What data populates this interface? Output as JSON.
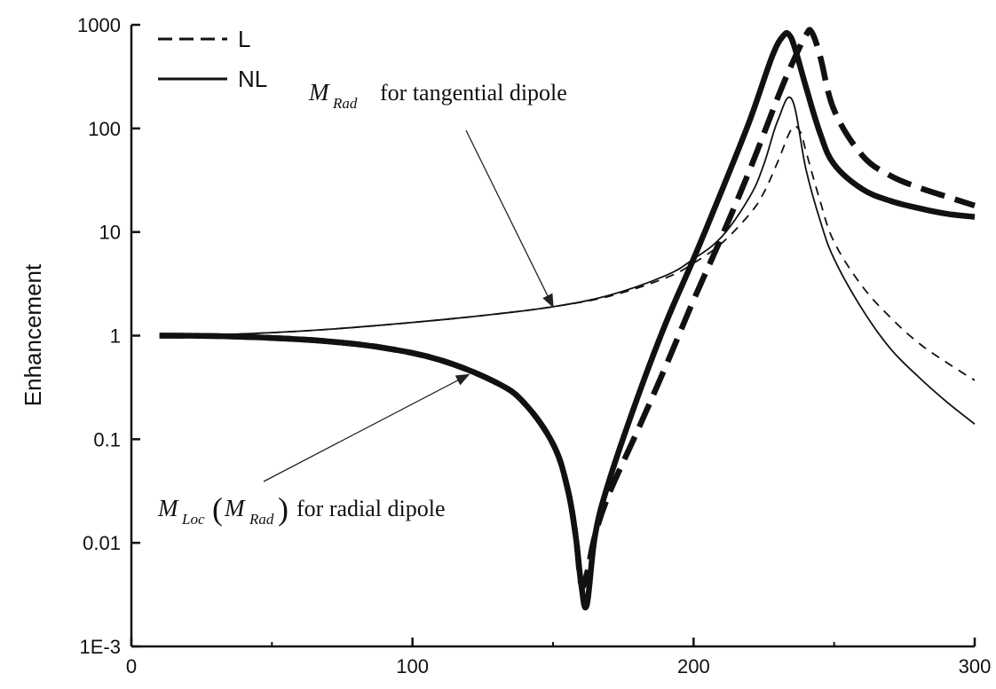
{
  "chart_data": {
    "type": "line",
    "title": "",
    "xlabel": "",
    "ylabel": "Enhancement",
    "xlim": [
      0,
      300
    ],
    "ylim": [
      0.001,
      1000
    ],
    "yscale": "log",
    "grid": false,
    "legend_position": "top-left",
    "x_ticks": [
      {
        "value": 0,
        "label": "0"
      },
      {
        "value": 100,
        "label": "100"
      },
      {
        "value": 200,
        "label": "200"
      },
      {
        "value": 300,
        "label": "300"
      }
    ],
    "y_ticks": [
      {
        "value": 0.001,
        "label": "1E-3"
      },
      {
        "value": 0.01,
        "label": "0.01"
      },
      {
        "value": 0.1,
        "label": "0.1"
      },
      {
        "value": 1,
        "label": "1"
      },
      {
        "value": 10,
        "label": "10"
      },
      {
        "value": 100,
        "label": "100"
      },
      {
        "value": 1000,
        "label": "1000"
      }
    ],
    "legend": [
      {
        "label": "L",
        "style": "dashed"
      },
      {
        "label": "NL",
        "style": "solid"
      }
    ],
    "annotations": [
      {
        "id": "tangential",
        "symbol": "M",
        "subscript": "Rad",
        "text": "for tangential dipole",
        "points_to": {
          "x": 150,
          "y": 1.9
        }
      },
      {
        "id": "radial",
        "symbol": "M",
        "subscript": "Loc",
        "paren_symbol": "M",
        "paren_subscript": "Rad",
        "text": "for radial dipole",
        "points_to": {
          "x": 120,
          "y": 0.42
        }
      }
    ],
    "series": [
      {
        "group": "tangential",
        "model": "L",
        "style": "dashed",
        "weight": "thin",
        "x": [
          10,
          30,
          50,
          70,
          90,
          110,
          130,
          150,
          170,
          190,
          200,
          210,
          220,
          225,
          230,
          235,
          238,
          240,
          245,
          250,
          260,
          270,
          280,
          290,
          300
        ],
        "y": [
          1,
          1.02,
          1.07,
          1.15,
          1.27,
          1.42,
          1.62,
          1.9,
          2.4,
          3.6,
          5,
          7.8,
          15,
          24,
          48,
          100,
          92,
          60,
          20,
          8,
          3.0,
          1.5,
          0.85,
          0.55,
          0.37
        ]
      },
      {
        "group": "tangential",
        "model": "NL",
        "style": "solid",
        "weight": "thin",
        "x": [
          10,
          30,
          50,
          70,
          90,
          110,
          130,
          150,
          170,
          190,
          200,
          210,
          220,
          225,
          230,
          235,
          240,
          245,
          250,
          260,
          270,
          280,
          290,
          300
        ],
        "y": [
          1,
          1.02,
          1.07,
          1.15,
          1.27,
          1.42,
          1.62,
          1.9,
          2.45,
          3.8,
          5.5,
          9,
          22,
          45,
          120,
          190,
          40,
          13,
          5.5,
          1.8,
          0.75,
          0.4,
          0.23,
          0.14
        ]
      },
      {
        "group": "radial",
        "model": "L",
        "style": "dashed",
        "weight": "thick",
        "x": [
          10,
          30,
          50,
          70,
          90,
          110,
          130,
          140,
          150,
          155,
          158,
          160,
          162,
          165,
          170,
          180,
          190,
          200,
          210,
          220,
          230,
          235,
          240,
          242,
          245,
          250,
          260,
          270,
          280,
          290,
          300
        ],
        "y": [
          1,
          0.99,
          0.95,
          0.88,
          0.76,
          0.58,
          0.35,
          0.22,
          0.09,
          0.035,
          0.012,
          0.004,
          0.005,
          0.012,
          0.03,
          0.12,
          0.5,
          2.2,
          9,
          40,
          200,
          420,
          800,
          850,
          500,
          150,
          55,
          35,
          27,
          22,
          18
        ]
      },
      {
        "group": "radial",
        "model": "NL",
        "style": "solid",
        "weight": "thick",
        "x": [
          10,
          30,
          50,
          70,
          90,
          110,
          130,
          140,
          150,
          155,
          158,
          160,
          162,
          165,
          170,
          180,
          190,
          200,
          210,
          220,
          228,
          232,
          234,
          236,
          240,
          245,
          250,
          260,
          270,
          280,
          290,
          300
        ],
        "y": [
          1,
          0.99,
          0.95,
          0.88,
          0.76,
          0.58,
          0.35,
          0.22,
          0.09,
          0.035,
          0.012,
          0.004,
          0.0025,
          0.012,
          0.04,
          0.25,
          1.3,
          5.5,
          25,
          120,
          500,
          790,
          800,
          600,
          250,
          90,
          45,
          26,
          20,
          17,
          15,
          14
        ]
      }
    ]
  }
}
